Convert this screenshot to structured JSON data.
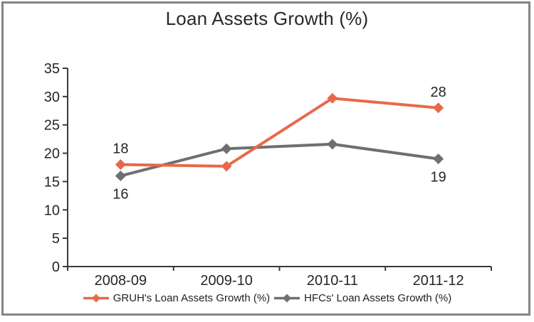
{
  "frame": {
    "border_color": "#848484",
    "background_color": "#ffffff"
  },
  "chart_data": {
    "type": "line",
    "title": "Loan Assets Growth (%)",
    "categories": [
      "2008-09",
      "2009-10",
      "2010-11",
      "2011-12"
    ],
    "series": [
      {
        "name": "GRUH's Loan Assets Growth (%)",
        "color": "#E8694A",
        "marker": "diamond",
        "values": [
          18,
          17.7,
          29.7,
          28
        ],
        "point_labels": [
          "18",
          "",
          "",
          "28"
        ],
        "label_side": "above"
      },
      {
        "name": "HFCs' Loan Assets Growth (%)",
        "color": "#6E6F71",
        "marker": "diamond",
        "values": [
          16,
          20.8,
          21.6,
          19
        ],
        "point_labels": [
          "16",
          "",
          "",
          "19"
        ],
        "label_side": "below"
      }
    ],
    "y_axis": {
      "min": 0,
      "max": 35,
      "step": 5,
      "tick_labels": [
        "0",
        "5",
        "10",
        "15",
        "20",
        "25",
        "30",
        "35"
      ]
    },
    "x_axis": {
      "tick_labels": [
        "2008-09",
        "2009-10",
        "2010-11",
        "2011-12"
      ]
    },
    "legend_position": "bottom",
    "grid": false,
    "axis_color": "#3a3a3a",
    "text_color": "#262626"
  }
}
